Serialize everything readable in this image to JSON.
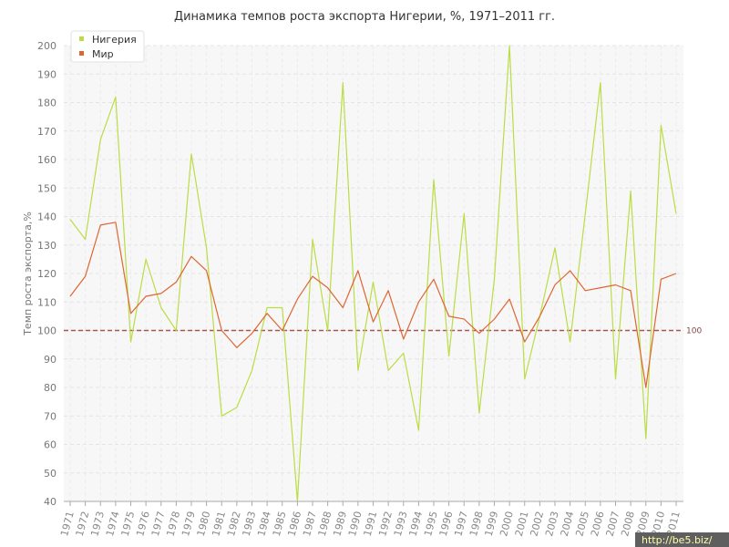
{
  "chart_data": {
    "type": "line",
    "title": "Динамика темпов роста экспорта Нигерии, %, 1971–2011 гг.",
    "xlabel": "",
    "ylabel": "Темп роста экспорта,%",
    "ylim": [
      40,
      200
    ],
    "yticks": [
      40,
      50,
      60,
      70,
      80,
      90,
      100,
      110,
      120,
      130,
      140,
      150,
      160,
      170,
      180,
      190,
      200
    ],
    "grid": true,
    "legend_position": "top-left",
    "reference_line": {
      "value": 100,
      "label": "100",
      "color": "#aa5555"
    },
    "x": [
      "1971",
      "1972",
      "1973",
      "1974",
      "1975",
      "1976",
      "1977",
      "1978",
      "1979",
      "1980",
      "1981",
      "1982",
      "1983",
      "1984",
      "1985",
      "1986",
      "1987",
      "1988",
      "1989",
      "1990",
      "1991",
      "1992",
      "1993",
      "1994",
      "1995",
      "1996",
      "1997",
      "1998",
      "1999",
      "2000",
      "2001",
      "2002",
      "2003",
      "2004",
      "2005",
      "2006",
      "2007",
      "2008",
      "2009",
      "2010",
      "2011"
    ],
    "series": [
      {
        "name": "Нигерия",
        "color": "#bbdd44",
        "values": [
          139,
          132,
          167,
          182,
          96,
          125,
          108,
          100,
          162,
          129,
          70,
          73,
          86,
          108,
          108,
          40,
          132,
          100,
          187,
          86,
          117,
          86,
          92,
          65,
          153,
          91,
          141,
          71,
          118,
          200,
          83,
          105,
          129,
          96,
          141,
          187,
          83,
          149,
          62,
          172,
          141
        ]
      },
      {
        "name": "Мир",
        "color": "#dd6633",
        "values": [
          112,
          119,
          137,
          138,
          106,
          112,
          113,
          117,
          126,
          121,
          100,
          94,
          99,
          106,
          100,
          111,
          119,
          115,
          108,
          121,
          103,
          114,
          97,
          110,
          118,
          105,
          104,
          99,
          104,
          111,
          96,
          105,
          116,
          121,
          114,
          115,
          116,
          114,
          80,
          118,
          120
        ]
      }
    ]
  },
  "watermark": "http://be5.biz/"
}
